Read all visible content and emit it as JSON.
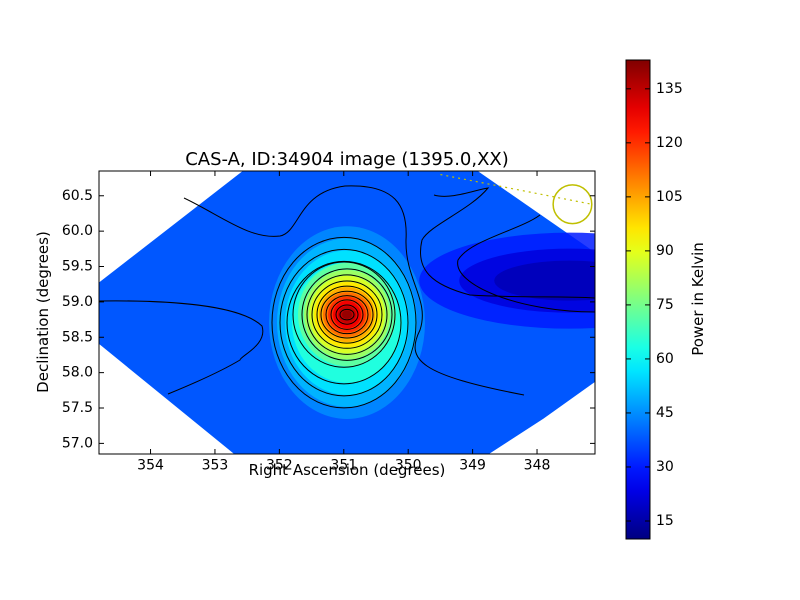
{
  "chart_data": {
    "type": "heatmap",
    "title": "CAS-A, ID:34904 image (1395.0,XX)",
    "xlabel": "Right Ascension (degrees)",
    "ylabel": "Declination (degrees)",
    "colorbar_label": "Power in Kelvin",
    "xlim": [
      354.8,
      347.1
    ],
    "ylim": [
      56.85,
      60.85
    ],
    "x_reversed": true,
    "x_ticks": [
      354,
      353,
      352,
      351,
      350,
      349,
      348
    ],
    "y_ticks": [
      "57.0",
      "57.5",
      "58.0",
      "58.5",
      "59.0",
      "59.5",
      "60.0",
      "60.5"
    ],
    "colorbar_range": [
      10,
      143
    ],
    "colorbar_ticks": [
      15,
      30,
      45,
      60,
      75,
      90,
      105,
      120,
      135
    ],
    "colormap": "jet",
    "peak": {
      "ra": 350.95,
      "dec": 58.82,
      "value": 140
    },
    "background_level": 38,
    "trough": {
      "ra": 347.5,
      "dec": 59.3,
      "value": 15
    },
    "contour_levels": [
      24,
      40,
      56,
      64,
      72,
      80,
      88,
      96,
      104,
      112,
      120,
      128,
      136
    ],
    "contour_color": "#000000",
    "beam_circle": {
      "ra": 347.45,
      "dec": 60.38,
      "radius_deg": 0.3,
      "color": "#bfbf00"
    },
    "beam_line_color": "#bfbf00",
    "grid": false,
    "legend": "none"
  }
}
